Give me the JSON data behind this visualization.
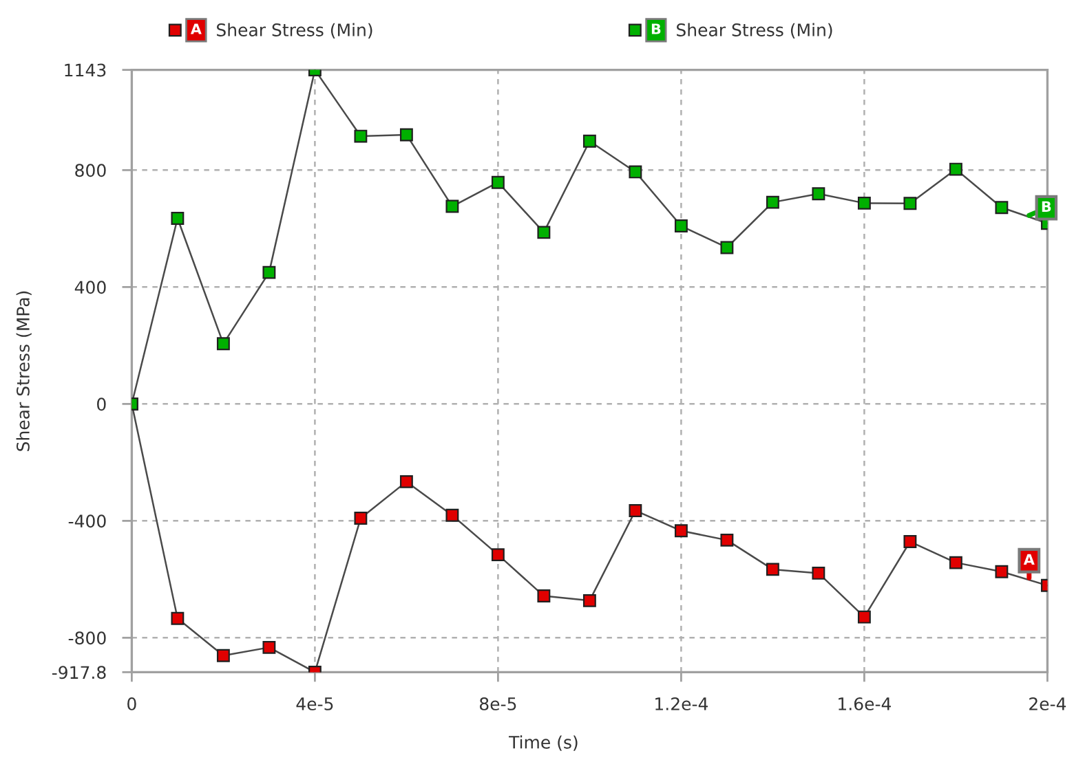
{
  "chart_data": {
    "type": "line",
    "xlabel": "Time (s)",
    "ylabel": "Shear Stress (MPa)",
    "x": [
      0,
      1e-05,
      2e-05,
      3e-05,
      4e-05,
      5e-05,
      6e-05,
      7e-05,
      8e-05,
      9e-05,
      0.0001,
      0.00011,
      0.00012,
      0.00013,
      0.00014,
      0.00015,
      0.00016,
      0.00017,
      0.00018,
      0.00019,
      0.0002
    ],
    "series": [
      {
        "name": "Shear Stress (Min)",
        "color": "#e00000",
        "values": [
          0,
          -734,
          -861,
          -833,
          -917.8,
          -391,
          -266,
          -381,
          -516,
          -657,
          -673,
          -365,
          -434,
          -466,
          -566,
          -579,
          -729,
          -471,
          -543,
          -574,
          -621
        ]
      },
      {
        "name": "Shear Stress (Min)",
        "color": "#00b000",
        "values": [
          0,
          635,
          206,
          450,
          1143,
          916,
          921,
          676,
          758,
          587,
          899,
          794,
          609,
          535,
          690,
          719,
          687,
          686,
          803,
          672,
          618
        ]
      }
    ],
    "xlim": [
      0,
      0.0002
    ],
    "xticks": [
      0,
      {
        "value": 4e-05,
        "label": "4e-5"
      },
      {
        "value": 8e-05,
        "label": "8e-5"
      },
      {
        "value": 0.00012,
        "label": "1.2e-4"
      },
      {
        "value": 0.00016,
        "label": "1.6e-4"
      },
      {
        "value": 0.0002,
        "label": "2e-4"
      }
    ],
    "ylim": [
      -917.8,
      1143
    ],
    "yticks": [
      -917.8,
      -800,
      -400,
      0,
      400,
      800,
      1143
    ],
    "annotations": [
      {
        "text": "A",
        "x": 0.000196,
        "y": -595
      },
      {
        "text": "B",
        "x": 0.000196,
        "y": 645
      }
    ],
    "grid": true,
    "legend": "top",
    "marker": "square",
    "line_style": "solid"
  }
}
